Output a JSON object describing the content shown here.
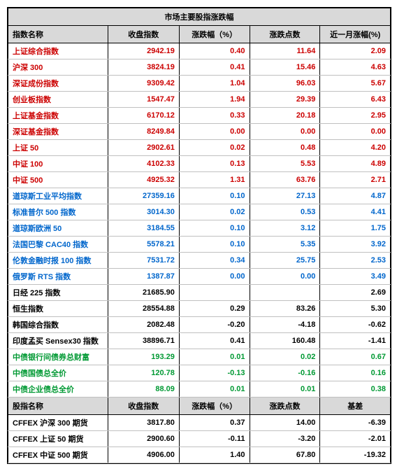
{
  "title": "市场主要股指涨跌幅",
  "colors": {
    "header_bg": "#d9d9d9",
    "border": "#000000",
    "row_border": "#c0c0c0",
    "red": "#cc0000",
    "blue": "#0066cc",
    "green": "#009933",
    "black": "#000000"
  },
  "headers1": [
    "指数名称",
    "收盘指数",
    "涨跌幅（%）",
    "涨跌点数",
    "近一月涨幅(%)"
  ],
  "headers2": [
    "股指名称",
    "收盘指数",
    "涨跌幅（%）",
    "涨跌点数",
    "基差"
  ],
  "rows1": [
    {
      "name": "上证综合指数",
      "c": "red",
      "close": "2942.19",
      "pct": "0.40",
      "pts": "11.64",
      "m": "2.09"
    },
    {
      "name": "沪深 300",
      "c": "red",
      "close": "3824.19",
      "pct": "0.41",
      "pts": "15.46",
      "m": "4.63"
    },
    {
      "name": "深证成份指数",
      "c": "red",
      "close": "9309.42",
      "pct": "1.04",
      "pts": "96.03",
      "m": "5.67"
    },
    {
      "name": "创业板指数",
      "c": "red",
      "close": "1547.47",
      "pct": "1.94",
      "pts": "29.39",
      "m": "6.43"
    },
    {
      "name": "上证基金指数",
      "c": "red",
      "close": "6170.12",
      "pct": "0.33",
      "pts": "20.18",
      "m": "2.95"
    },
    {
      "name": "深证基金指数",
      "c": "red",
      "close": "8249.84",
      "pct": "0.00",
      "pts": "0.00",
      "m": "0.00"
    },
    {
      "name": "上证 50",
      "c": "red",
      "close": "2902.61",
      "pct": "0.02",
      "pts": "0.48",
      "m": "4.20"
    },
    {
      "name": "中证 100",
      "c": "red",
      "close": "4102.33",
      "pct": "0.13",
      "pts": "5.53",
      "m": "4.89"
    },
    {
      "name": "中证 500",
      "c": "red",
      "close": "4925.32",
      "pct": "1.31",
      "pts": "63.76",
      "m": "2.71"
    },
    {
      "name": "道琼斯工业平均指数",
      "c": "blue",
      "close": "27359.16",
      "pct": "0.10",
      "pts": "27.13",
      "m": "4.87"
    },
    {
      "name": "标准普尔 500 指数",
      "c": "blue",
      "close": "3014.30",
      "pct": "0.02",
      "pts": "0.53",
      "m": "4.41"
    },
    {
      "name": "道琼斯欧洲 50",
      "c": "blue",
      "close": "3184.55",
      "pct": "0.10",
      "pts": "3.12",
      "m": "1.75"
    },
    {
      "name": "法国巴黎 CAC40 指数",
      "c": "blue",
      "close": "5578.21",
      "pct": "0.10",
      "pts": "5.35",
      "m": "3.92"
    },
    {
      "name": "伦敦金融时报 100 指数",
      "c": "blue",
      "close": "7531.72",
      "pct": "0.34",
      "pts": "25.75",
      "m": "2.53"
    },
    {
      "name": "俄罗斯 RTS 指数",
      "c": "blue",
      "close": "1387.87",
      "pct": "0.00",
      "pts": "0.00",
      "m": "3.49"
    },
    {
      "name": "日经 225 指数",
      "c": "black",
      "close": "21685.90",
      "pct": "",
      "pts": "",
      "m": "2.69"
    },
    {
      "name": "恒生指数",
      "c": "black",
      "close": "28554.88",
      "pct": "0.29",
      "pts": "83.26",
      "m": "5.30"
    },
    {
      "name": "韩国综合指数",
      "c": "black",
      "close": "2082.48",
      "pct": "-0.20",
      "pts": "-4.18",
      "m": "-0.62"
    },
    {
      "name": "印度孟买 Sensex30 指数",
      "c": "black",
      "close": "38896.71",
      "pct": "0.41",
      "pts": "160.48",
      "m": "-1.41"
    },
    {
      "name": "中债银行间债券总财富",
      "c": "green",
      "close": "193.29",
      "pct": "0.01",
      "pts": "0.02",
      "m": "0.67"
    },
    {
      "name": "中债国债总全价",
      "c": "green",
      "close": "120.78",
      "pct": "-0.13",
      "pts": "-0.16",
      "m": "0.16"
    },
    {
      "name": "中债企业债总全价",
      "c": "green",
      "close": "88.09",
      "pct": "0.01",
      "pts": "0.01",
      "m": "0.38"
    }
  ],
  "rows2": [
    {
      "name": "CFFEX 沪深 300 期货",
      "close": "3817.80",
      "pct": "0.37",
      "pts": "14.00",
      "m": "-6.39"
    },
    {
      "name": "CFFEX 上证 50 期货",
      "close": "2900.60",
      "pct": "-0.11",
      "pts": "-3.20",
      "m": "-2.01"
    },
    {
      "name": "CFFEX 中证 500 期货",
      "close": "4906.00",
      "pct": "1.40",
      "pts": "67.80",
      "m": "-19.32"
    }
  ]
}
